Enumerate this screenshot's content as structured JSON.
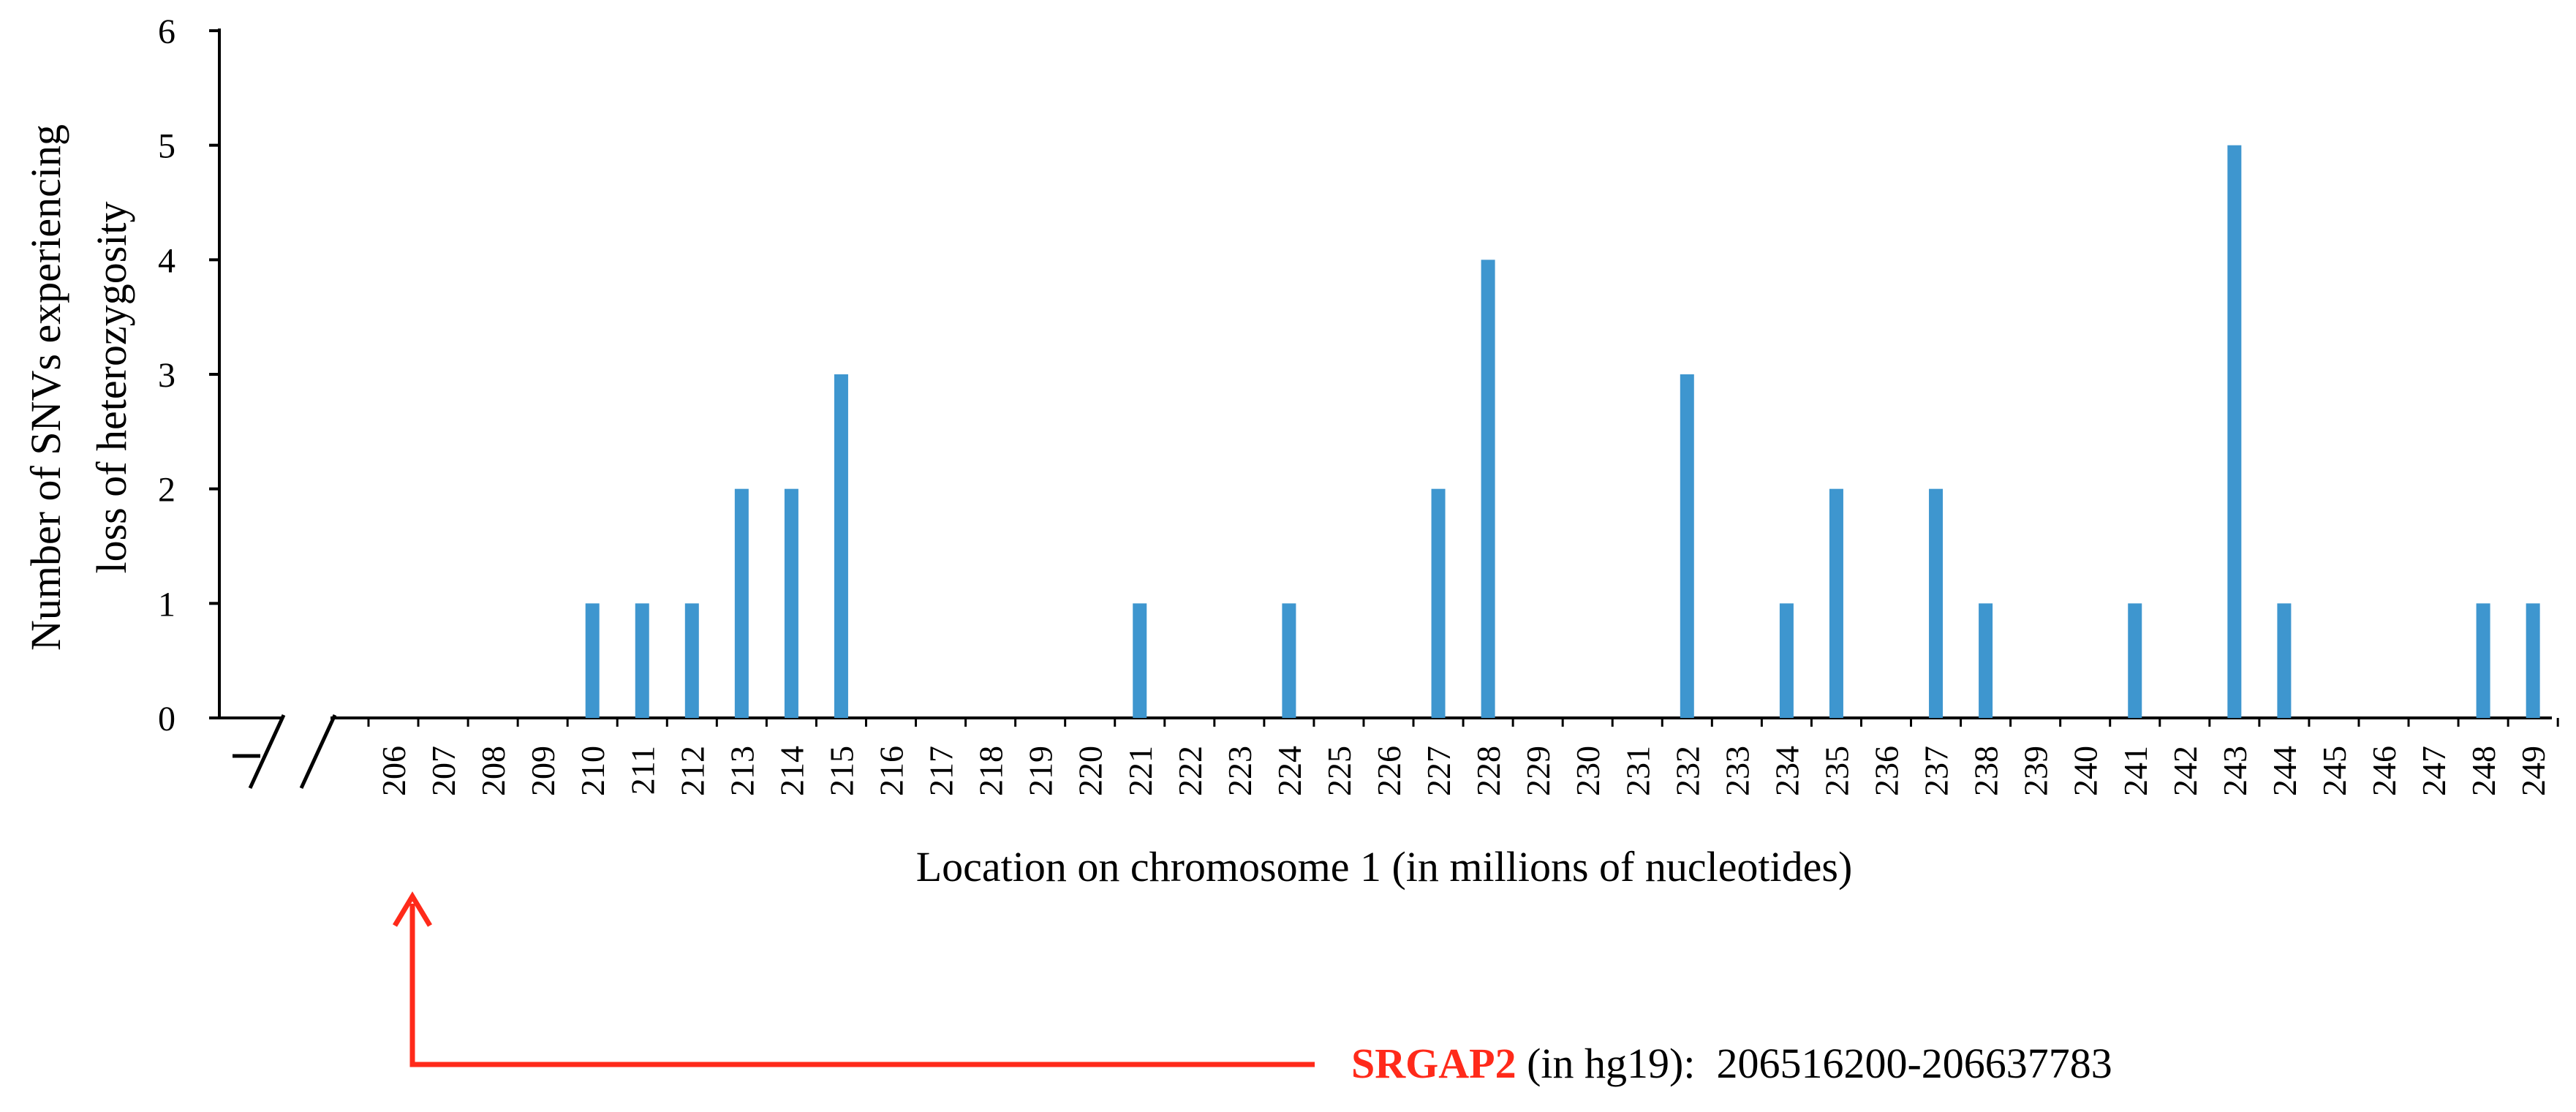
{
  "chart_data": {
    "type": "bar",
    "title": "",
    "xlabel": "Location on chromosome 1 (in millions of nucleotides)",
    "ylabel_line1": "Number of SNVs experiencing",
    "ylabel_line2": "loss of heterozygosity",
    "ylim": [
      0,
      6
    ],
    "yticks": [
      "0",
      "1",
      "2",
      "3",
      "4",
      "5",
      "6"
    ],
    "categories": [
      "206",
      "207",
      "208",
      "209",
      "210",
      "211",
      "212",
      "213",
      "214",
      "215",
      "216",
      "217",
      "218",
      "219",
      "220",
      "221",
      "222",
      "223",
      "224",
      "225",
      "226",
      "227",
      "228",
      "229",
      "230",
      "231",
      "232",
      "233",
      "234",
      "235",
      "236",
      "237",
      "238",
      "239",
      "240",
      "241",
      "242",
      "243",
      "244",
      "245",
      "246",
      "247",
      "248",
      "249"
    ],
    "values": [
      0,
      0,
      0,
      0,
      1,
      1,
      1,
      2,
      2,
      3,
      0,
      0,
      0,
      0,
      0,
      1,
      0,
      0,
      1,
      0,
      0,
      2,
      4,
      0,
      0,
      0,
      3,
      0,
      1,
      2,
      0,
      2,
      1,
      0,
      0,
      1,
      0,
      5,
      1,
      0,
      0,
      0,
      1,
      1
    ],
    "bar_color": "#3e96cf",
    "axis_break": true
  },
  "annotation": {
    "gene": "SRGAP2",
    "build": " (in hg19):  ",
    "range": "206516200-206637783",
    "gene_color": "#ff2a1a",
    "arrow_color": "#ff2a1a",
    "points_to_category": "206"
  }
}
